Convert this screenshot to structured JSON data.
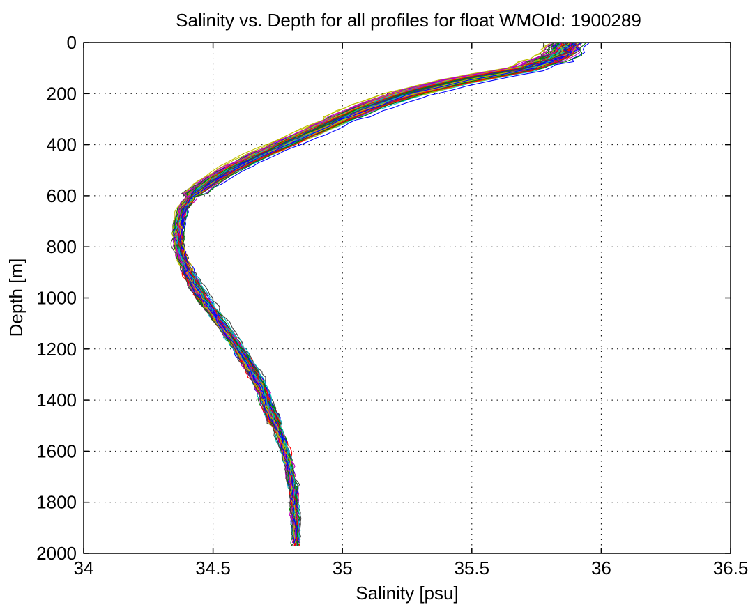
{
  "chart_data": {
    "type": "line",
    "title": "Salinity vs. Depth for all profiles for float WMOId: 1900289",
    "xlabel": "Salinity [psu]",
    "ylabel": "Depth [m]",
    "xlim": [
      34,
      36.5
    ],
    "ylim": [
      0,
      2000
    ],
    "y_reversed": true,
    "grid": "dotted",
    "legend": "none",
    "xticks": [
      "34",
      "34.5",
      "35",
      "35.5",
      "36",
      "36.5"
    ],
    "yticks": [
      "0",
      "200",
      "400",
      "600",
      "800",
      "1000",
      "1200",
      "1400",
      "1600",
      "1800",
      "2000"
    ],
    "series_count_approx": 120,
    "series_colors": [
      "#0000ff",
      "#008000",
      "#ff0000",
      "#00bfbf",
      "#bf00bf",
      "#bfbf00",
      "#404040"
    ],
    "mean_profile": {
      "depth": [
        0,
        50,
        100,
        150,
        200,
        250,
        300,
        350,
        400,
        450,
        500,
        550,
        600,
        650,
        700,
        750,
        800,
        850,
        900,
        950,
        1000,
        1050,
        1100,
        1150,
        1200,
        1250,
        1300,
        1350,
        1400,
        1450,
        1500,
        1550,
        1600,
        1650,
        1700,
        1750,
        1800,
        1850,
        1900,
        1950,
        1975
      ],
      "salinity": [
        35.87,
        35.84,
        35.72,
        35.45,
        35.25,
        35.1,
        34.99,
        34.88,
        34.77,
        34.66,
        34.56,
        34.48,
        34.42,
        34.385,
        34.37,
        34.365,
        34.37,
        34.385,
        34.405,
        34.43,
        34.46,
        34.495,
        34.53,
        34.565,
        34.6,
        34.63,
        34.66,
        34.685,
        34.705,
        34.725,
        34.745,
        34.765,
        34.78,
        34.792,
        34.802,
        34.81,
        34.815,
        34.818,
        34.82,
        34.822,
        34.822
      ]
    }
  }
}
